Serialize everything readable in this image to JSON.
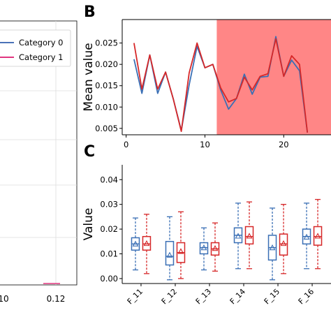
{
  "panel_a": {
    "legend": [
      {
        "label": "Category 0",
        "color": "#4a72b8"
      },
      {
        "label": "Category 1",
        "color": "#e0357f"
      }
    ],
    "tick_labels": [
      "10",
      "0.12"
    ]
  },
  "panel_b": {
    "label": "B"
  },
  "panel_c": {
    "label": "C"
  },
  "chart_data": [
    {
      "type": "line",
      "panel": "B",
      "ylabel": "Mean value",
      "xlabel": "",
      "xlim": [
        -0.5,
        26
      ],
      "ylim": [
        0.0035,
        0.0305
      ],
      "x_ticks": [
        0,
        10,
        20
      ],
      "y_ticks": [
        "0.005",
        "0.010",
        "0.015",
        "0.020",
        "0.025"
      ],
      "shaded_region": {
        "x_start": 11.5,
        "x_end": 26,
        "color": "#ff8080"
      },
      "x": [
        1,
        2,
        3,
        4,
        5,
        6,
        7,
        8,
        9,
        10,
        11,
        12,
        13,
        14,
        15,
        16,
        17,
        18,
        19,
        20,
        21,
        22,
        23
      ],
      "series": [
        {
          "color": "#3a6fb5",
          "values": [
            0.0212,
            0.0132,
            0.0222,
            0.0132,
            0.0182,
            0.0118,
            0.0045,
            0.0152,
            0.0242,
            0.0192,
            0.02,
            0.014,
            0.0095,
            0.012,
            0.0177,
            0.013,
            0.017,
            0.0172,
            0.0265,
            0.0172,
            0.021,
            0.0185,
            0.004
          ]
        },
        {
          "color": "#d62728",
          "values": [
            0.025,
            0.0142,
            0.0222,
            0.0142,
            0.0182,
            0.0118,
            0.0043,
            0.018,
            0.025,
            0.0192,
            0.02,
            0.0145,
            0.0112,
            0.012,
            0.017,
            0.014,
            0.0172,
            0.0178,
            0.026,
            0.0172,
            0.022,
            0.02,
            0.004
          ]
        }
      ]
    },
    {
      "type": "box",
      "panel": "C",
      "ylabel": "Value",
      "ylim": [
        -0.002,
        0.046
      ],
      "y_ticks": [
        "0.00",
        "0.01",
        "0.02",
        "0.03",
        "0.04"
      ],
      "categories": [
        "F_11",
        "F_12",
        "F_13",
        "F_14",
        "F_15",
        "F_16"
      ],
      "series": [
        {
          "color": "#3a6fb5",
          "boxes": [
            {
              "whislo": 0.0035,
              "q1": 0.0115,
              "med": 0.014,
              "q3": 0.0165,
              "whishi": 0.0245,
              "mean": 0.014
            },
            {
              "whislo": -0.0005,
              "q1": 0.0055,
              "med": 0.009,
              "q3": 0.015,
              "whishi": 0.025,
              "mean": 0.0095
            },
            {
              "whislo": 0.0035,
              "q1": 0.01,
              "med": 0.0125,
              "q3": 0.0145,
              "whishi": 0.0205,
              "mean": 0.0125
            },
            {
              "whislo": 0.004,
              "q1": 0.0145,
              "med": 0.0175,
              "q3": 0.0205,
              "whishi": 0.0305,
              "mean": 0.0172
            },
            {
              "whislo": -0.0005,
              "q1": 0.0075,
              "med": 0.0125,
              "q3": 0.0175,
              "whishi": 0.0285,
              "mean": 0.0125
            },
            {
              "whislo": 0.004,
              "q1": 0.014,
              "med": 0.017,
              "q3": 0.02,
              "whishi": 0.0305,
              "mean": 0.0168
            }
          ]
        },
        {
          "color": "#d62728",
          "boxes": [
            {
              "whislo": 0.002,
              "q1": 0.0115,
              "med": 0.014,
              "q3": 0.017,
              "whishi": 0.026,
              "mean": 0.0142
            },
            {
              "whislo": 0.0,
              "q1": 0.0065,
              "med": 0.0105,
              "q3": 0.0145,
              "whishi": 0.027,
              "mean": 0.011
            },
            {
              "whislo": 0.003,
              "q1": 0.0095,
              "med": 0.012,
              "q3": 0.0145,
              "whishi": 0.0225,
              "mean": 0.0122
            },
            {
              "whislo": 0.004,
              "q1": 0.014,
              "med": 0.017,
              "q3": 0.021,
              "whishi": 0.031,
              "mean": 0.0172
            },
            {
              "whislo": 0.002,
              "q1": 0.0095,
              "med": 0.014,
              "q3": 0.018,
              "whishi": 0.03,
              "mean": 0.0142
            },
            {
              "whislo": 0.004,
              "q1": 0.0135,
              "med": 0.017,
              "q3": 0.021,
              "whishi": 0.032,
              "mean": 0.0172
            }
          ]
        }
      ]
    }
  ]
}
